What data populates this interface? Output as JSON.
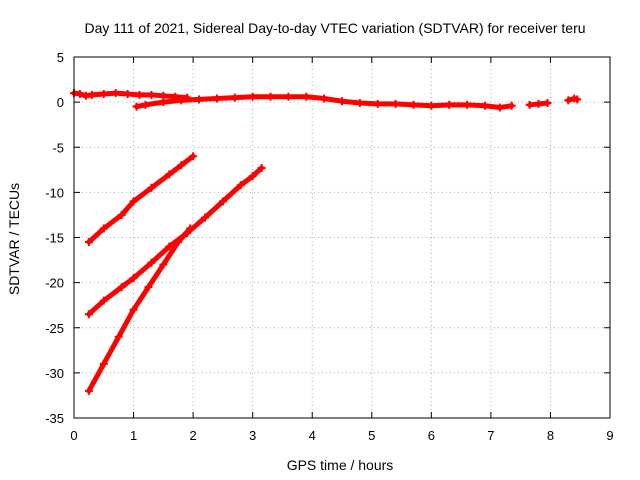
{
  "chart_data": {
    "type": "scatter",
    "title": "Day 111 of 2021, Sidereal Day-to-day VTEC variation (SDTVAR) for receiver teru",
    "xlabel": "GPS time / hours",
    "ylabel": "SDTVAR / TECUs",
    "xlim": [
      0,
      9
    ],
    "ylim": [
      -35,
      5
    ],
    "xticks": [
      0,
      1,
      2,
      3,
      4,
      5,
      6,
      7,
      8,
      9
    ],
    "yticks": [
      5,
      0,
      -5,
      -10,
      -15,
      -20,
      -25,
      -30,
      -35
    ],
    "grid": true,
    "legend": "none",
    "marker_color": "#ff0000",
    "series": [
      {
        "values": [
          [
            0.0,
            1.0
          ],
          [
            0.1,
            0.9
          ],
          [
            0.2,
            0.7
          ],
          [
            0.3,
            0.8
          ],
          [
            0.5,
            0.9
          ],
          [
            0.7,
            1.0
          ],
          [
            0.9,
            0.9
          ],
          [
            1.1,
            0.8
          ],
          [
            1.3,
            0.8
          ],
          [
            1.5,
            0.7
          ],
          [
            1.7,
            0.6
          ],
          [
            1.9,
            0.5
          ]
        ]
      },
      {
        "values": [
          [
            1.05,
            -0.5
          ],
          [
            1.2,
            -0.3
          ],
          [
            1.5,
            0.0
          ],
          [
            1.8,
            0.2
          ],
          [
            2.1,
            0.3
          ],
          [
            2.4,
            0.4
          ],
          [
            2.7,
            0.5
          ],
          [
            3.0,
            0.6
          ],
          [
            3.3,
            0.6
          ],
          [
            3.6,
            0.6
          ],
          [
            3.9,
            0.6
          ],
          [
            4.2,
            0.4
          ],
          [
            4.5,
            0.1
          ],
          [
            4.8,
            -0.1
          ],
          [
            5.1,
            -0.2
          ],
          [
            5.4,
            -0.2
          ],
          [
            5.7,
            -0.3
          ],
          [
            6.0,
            -0.4
          ],
          [
            6.3,
            -0.3
          ],
          [
            6.6,
            -0.3
          ],
          [
            6.9,
            -0.4
          ],
          [
            7.15,
            -0.6
          ],
          [
            7.35,
            -0.4
          ]
        ]
      },
      {
        "values": [
          [
            7.65,
            -0.3
          ],
          [
            7.8,
            -0.2
          ],
          [
            7.95,
            -0.1
          ]
        ]
      },
      {
        "values": [
          [
            8.3,
            0.2
          ],
          [
            8.4,
            0.4
          ],
          [
            8.45,
            0.3
          ]
        ]
      },
      {
        "values": [
          [
            0.25,
            -15.5
          ],
          [
            0.5,
            -14.0
          ],
          [
            0.8,
            -12.5
          ],
          [
            1.0,
            -11.0
          ],
          [
            1.3,
            -9.5
          ],
          [
            1.6,
            -8.0
          ],
          [
            1.8,
            -7.0
          ],
          [
            2.0,
            -6.0
          ]
        ]
      },
      {
        "values": [
          [
            0.25,
            -23.5
          ],
          [
            0.5,
            -22.0
          ],
          [
            0.8,
            -20.5
          ],
          [
            1.0,
            -19.5
          ],
          [
            1.3,
            -17.8
          ],
          [
            1.6,
            -16.0
          ],
          [
            1.9,
            -14.5
          ],
          [
            2.2,
            -12.8
          ],
          [
            2.5,
            -11.0
          ],
          [
            2.8,
            -9.2
          ],
          [
            3.0,
            -8.2
          ],
          [
            3.15,
            -7.3
          ]
        ]
      },
      {
        "values": [
          [
            0.25,
            -32.0
          ],
          [
            0.5,
            -29.0
          ],
          [
            0.75,
            -26.0
          ],
          [
            1.0,
            -23.0
          ],
          [
            1.25,
            -20.5
          ],
          [
            1.5,
            -18.0
          ],
          [
            1.75,
            -15.5
          ],
          [
            1.95,
            -14.0
          ]
        ]
      }
    ]
  }
}
